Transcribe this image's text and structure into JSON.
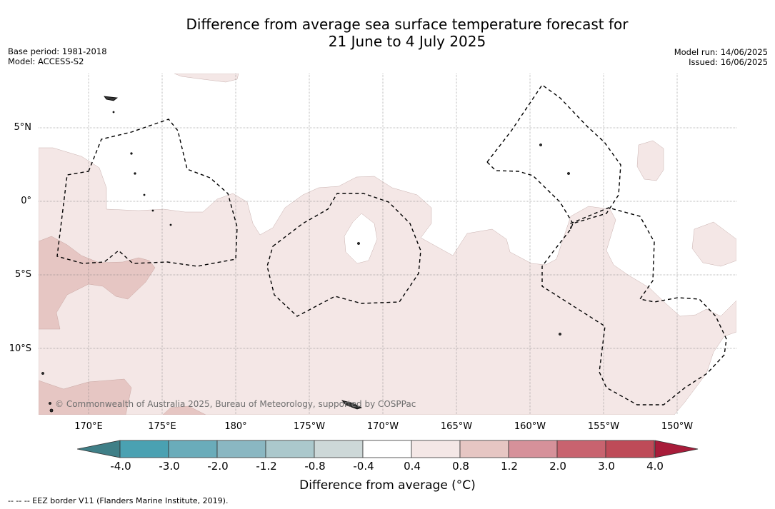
{
  "title": {
    "line1": "Difference from average sea surface temperature forecast for",
    "line2": "21 June to 4 July 2025"
  },
  "meta_left": {
    "base_period": "Base period: 1981-2018",
    "model": "Model: ACCESS-S2"
  },
  "meta_right": {
    "model_run": "Model run: 14/06/2025",
    "issued": "Issued: 16/06/2025"
  },
  "axes": {
    "lat_labels": [
      "5°N",
      "0°",
      "5°S",
      "10°S"
    ],
    "lon_labels": [
      "170°E",
      "175°E",
      "180°",
      "175°W",
      "170°W",
      "165°W",
      "160°W",
      "155°W",
      "150°W"
    ]
  },
  "copyright": "© Commonwealth of Australia 2025, Bureau of Meteorology, supported by COSPPac",
  "colorbar": {
    "label": "Difference from average (°C)",
    "ticks": [
      "-4.0",
      "-3.0",
      "-2.0",
      "-1.2",
      "-0.8",
      "-0.4",
      "0.4",
      "0.8",
      "1.2",
      "2.0",
      "3.0",
      "4.0"
    ],
    "colors": [
      "#3f7f87",
      "#4aa1b2",
      "#6aacba",
      "#8ab7c2",
      "#abc8cc",
      "#cdd8d8",
      "#ffffff",
      "#f4e7e6",
      "#e6c6c3",
      "#d6919a",
      "#c8636f",
      "#be4b58",
      "#a81c3a"
    ]
  },
  "legend": "--  --  -- EEZ border V11 (Flanders Marine Institute, 2019)."
}
